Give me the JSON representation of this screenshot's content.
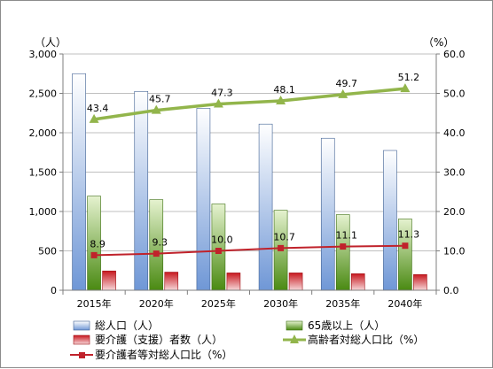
{
  "chart_data": {
    "type": "bar",
    "categories": [
      "2015年",
      "2020年",
      "2025年",
      "2030年",
      "2035年",
      "2040年"
    ],
    "left_axis": {
      "unit_label": "（人）",
      "range": [
        0,
        3000
      ],
      "ticks": [
        "0",
        "500",
        "1,000",
        "1,500",
        "2,000",
        "2,500",
        "3,000"
      ],
      "tick_values": [
        0,
        500,
        1000,
        1500,
        2000,
        2500,
        3000
      ]
    },
    "right_axis": {
      "unit_label": "（%）",
      "range": [
        0,
        60
      ],
      "ticks": [
        "0.0",
        "10.0",
        "20.0",
        "30.0",
        "40.0",
        "50.0",
        "60.0"
      ],
      "tick_values": [
        0,
        10,
        20,
        30,
        40,
        50,
        60
      ]
    },
    "grid": true,
    "legend_position": "bottom",
    "series": [
      {
        "name": "総人口（人）",
        "kind": "bar",
        "axis": "left",
        "values": [
          2750,
          2525,
          2310,
          2110,
          1930,
          1775
        ],
        "color_top": "#ffffff",
        "color_bottom": "#6f97d6",
        "stroke": "#3e5f92"
      },
      {
        "name": "65歳以上（人）",
        "kind": "bar",
        "axis": "left",
        "values": [
          1195,
          1150,
          1095,
          1015,
          960,
          905
        ],
        "color_top": "#e5f2cf",
        "color_bottom": "#4a8a12",
        "stroke": "#3b6e10"
      },
      {
        "name": "要介護（支援）者数（人）",
        "kind": "bar",
        "axis": "left",
        "values": [
          245,
          230,
          220,
          220,
          210,
          200
        ],
        "color_top": "#c8191f",
        "color_bottom": "#f6d7d9",
        "stroke": "#a01217"
      },
      {
        "name": "高齢者対総人口比（%）",
        "kind": "line",
        "axis": "right",
        "values": [
          43.4,
          45.7,
          47.3,
          48.1,
          49.7,
          51.2
        ],
        "labels": [
          "43.4",
          "45.7",
          "47.3",
          "48.1",
          "49.7",
          "51.2"
        ],
        "color": "#92b54b",
        "marker": "triangle"
      },
      {
        "name": "要介護者等対総人口比（%）",
        "kind": "line",
        "axis": "right",
        "values": [
          8.9,
          9.3,
          10.0,
          10.7,
          11.1,
          11.3
        ],
        "labels": [
          "8.9",
          "9.3",
          "10.0",
          "10.7",
          "11.1",
          "11.3"
        ],
        "color": "#c0222b",
        "marker": "square"
      }
    ]
  }
}
